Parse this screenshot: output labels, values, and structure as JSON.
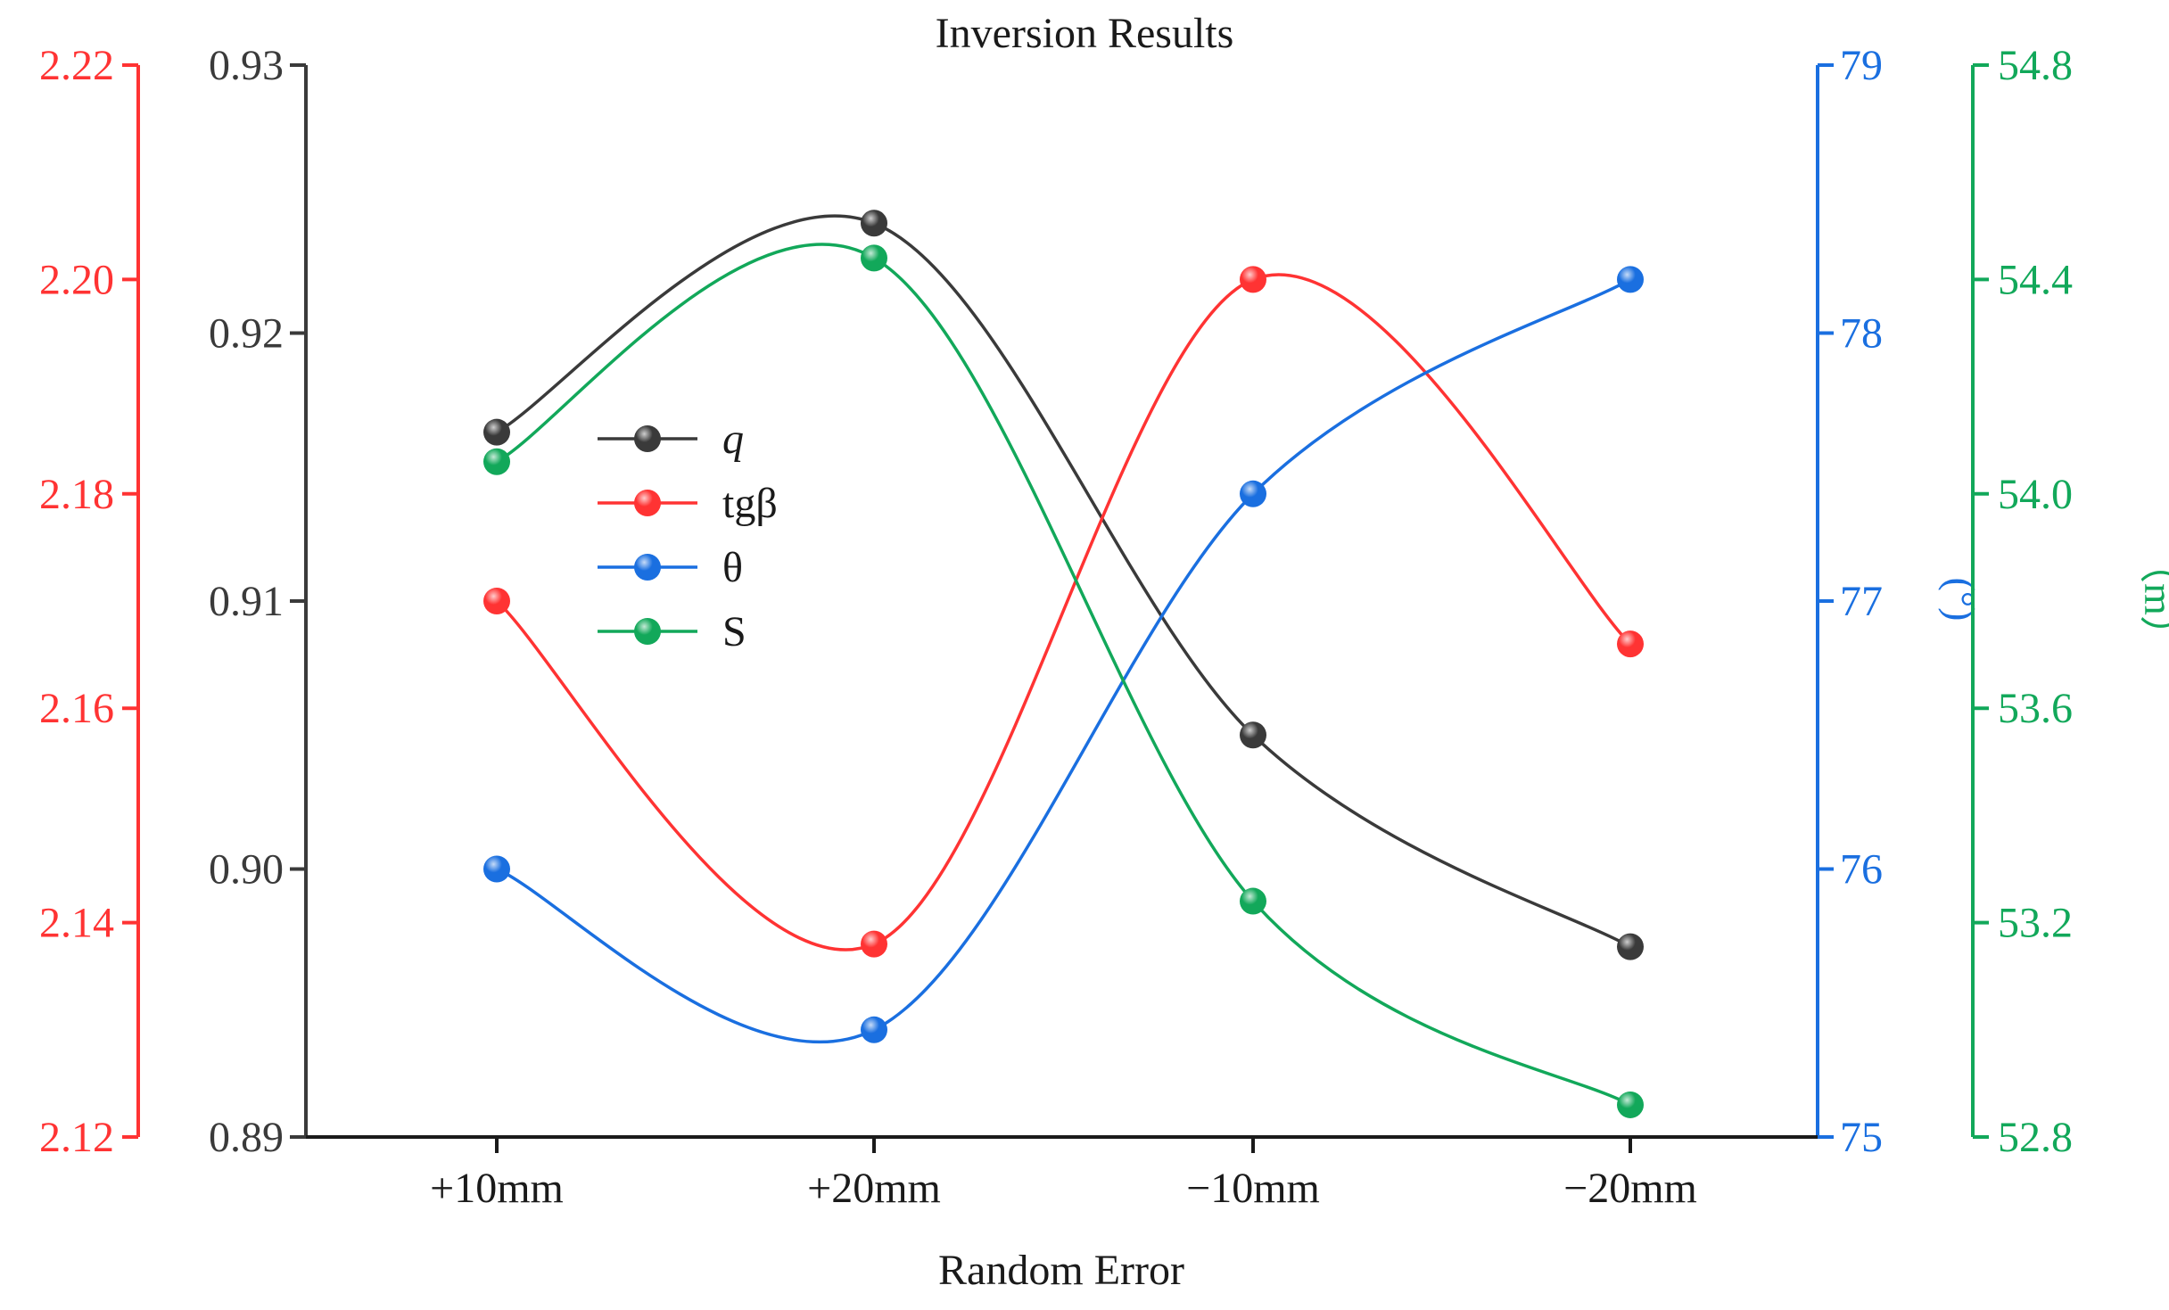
{
  "chart_data": {
    "type": "line",
    "title": "Inversion Results",
    "xlabel": "Random Error",
    "categories": [
      "+10mm",
      "+20mm",
      "−10mm",
      "−20mm"
    ],
    "axes": [
      {
        "id": "q",
        "color": "#3a3a3a",
        "min": 0.89,
        "max": 0.93,
        "ticks": [
          "0.89",
          "0.90",
          "0.91",
          "0.92",
          "0.93"
        ],
        "label": ""
      },
      {
        "id": "tg",
        "color": "#ff3333",
        "min": 2.12,
        "max": 2.22,
        "ticks": [
          "2.12",
          "2.14",
          "2.16",
          "2.18",
          "2.20",
          "2.22"
        ],
        "label": ""
      },
      {
        "id": "theta",
        "color": "#1a6fe0",
        "min": 75,
        "max": 79,
        "ticks": [
          "75",
          "76",
          "77",
          "78",
          "79"
        ],
        "label": "(°)"
      },
      {
        "id": "s",
        "color": "#12a85a",
        "min": 52.8,
        "max": 54.8,
        "ticks": [
          "52.8",
          "53.2",
          "53.6",
          "54.0",
          "54.4",
          "54.8"
        ],
        "label": "（m）"
      }
    ],
    "series": [
      {
        "name": "q",
        "axis": "q",
        "color": "#3a3a3a",
        "values": [
          0.9163,
          0.9241,
          0.905,
          0.8971
        ]
      },
      {
        "name": "tgβ",
        "axis": "tg",
        "color": "#ff3333",
        "values": [
          2.17,
          2.138,
          2.2,
          2.166
        ]
      },
      {
        "name": "θ",
        "axis": "theta",
        "color": "#1a6fe0",
        "values": [
          76.0,
          75.4,
          77.4,
          78.2
        ]
      },
      {
        "name": "S",
        "axis": "s",
        "color": "#12a85a",
        "values": [
          54.06,
          54.44,
          53.24,
          52.86
        ]
      }
    ]
  }
}
